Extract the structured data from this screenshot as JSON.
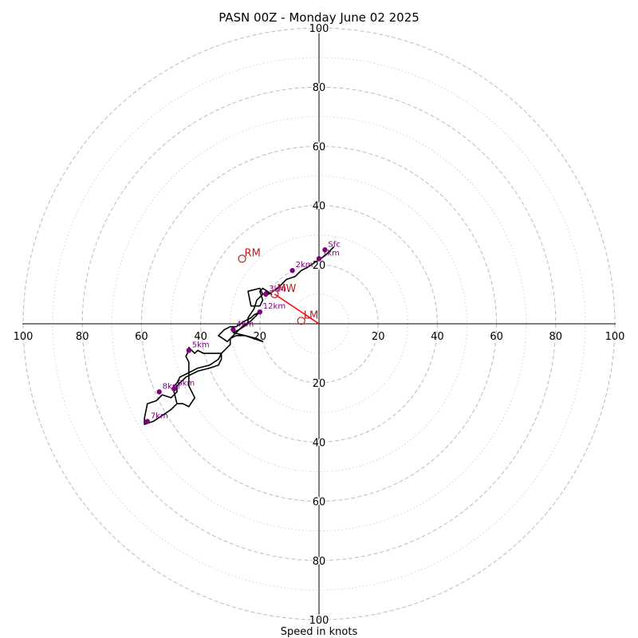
{
  "chart_data": {
    "type": "hodograph",
    "title": "PASN 00Z - Monday June 02 2025",
    "xlabel": "Speed in knots",
    "range": [
      -100,
      100
    ],
    "rings_major": [
      20,
      40,
      60,
      80,
      100
    ],
    "rings_minor": [
      10,
      30,
      50,
      70,
      90
    ],
    "axis_ticks": {
      "right": [
        "20",
        "40",
        "60",
        "80",
        "100"
      ],
      "left": [
        "20",
        "40",
        "60",
        "80",
        "100"
      ],
      "up": [
        "20",
        "40",
        "60",
        "80",
        "100"
      ],
      "down": [
        "20",
        "40",
        "60",
        "80",
        "100"
      ]
    },
    "hodograph_trace": [
      [
        5,
        26
      ],
      [
        2,
        23
      ],
      [
        -4,
        19
      ],
      [
        -6,
        18
      ],
      [
        -8,
        16
      ],
      [
        -11,
        15
      ],
      [
        -14,
        12
      ],
      [
        -17,
        10
      ],
      [
        -18,
        11
      ],
      [
        -16,
        10
      ],
      [
        -19,
        12
      ],
      [
        -20,
        11
      ],
      [
        -19,
        8
      ],
      [
        -20,
        6
      ],
      [
        -23,
        6
      ],
      [
        -24,
        11
      ],
      [
        -20,
        12
      ],
      [
        -19,
        10
      ],
      [
        -21,
        8
      ],
      [
        -22,
        5
      ],
      [
        -24,
        2
      ],
      [
        -24,
        0
      ],
      [
        -27,
        -2
      ],
      [
        -29,
        -4
      ],
      [
        -31,
        -6
      ],
      [
        -34,
        -4
      ],
      [
        -32,
        -2
      ],
      [
        -30,
        -1
      ],
      [
        -28,
        -1
      ],
      [
        -25,
        1
      ],
      [
        -23,
        2
      ],
      [
        -22,
        3
      ],
      [
        -20,
        4
      ],
      [
        -23,
        1
      ],
      [
        -26,
        -1
      ],
      [
        -27,
        -2
      ],
      [
        -29,
        -3
      ],
      [
        -25,
        -4
      ],
      [
        -22,
        -5
      ],
      [
        -19,
        -6
      ],
      [
        -21,
        -5
      ],
      [
        -25,
        -4
      ],
      [
        -28,
        -4
      ],
      [
        -30,
        -5
      ],
      [
        -30,
        -6
      ],
      [
        -30,
        -7
      ],
      [
        -31,
        -8
      ],
      [
        -33,
        -10
      ],
      [
        -34,
        -12
      ],
      [
        -37,
        -14
      ],
      [
        -41,
        -15
      ],
      [
        -43,
        -16
      ],
      [
        -45,
        -17
      ],
      [
        -47,
        -18
      ],
      [
        -48,
        -20
      ],
      [
        -49,
        -21
      ],
      [
        -49,
        -23
      ],
      [
        -48,
        -27
      ],
      [
        -46,
        -27
      ],
      [
        -44,
        -28
      ],
      [
        -42,
        -25
      ],
      [
        -44,
        -21
      ],
      [
        -44,
        -17
      ],
      [
        -44,
        -13
      ],
      [
        -45,
        -11
      ],
      [
        -44,
        -9
      ],
      [
        -44,
        -8
      ],
      [
        -42,
        -10
      ],
      [
        -41,
        -9
      ],
      [
        -39,
        -10
      ],
      [
        -37,
        -10
      ],
      [
        -33,
        -10
      ],
      [
        -33,
        -12
      ],
      [
        -34,
        -14
      ],
      [
        -37,
        -15
      ],
      [
        -41,
        -16
      ],
      [
        -45,
        -18
      ],
      [
        -48,
        -21
      ],
      [
        -48,
        -23
      ],
      [
        -50,
        -25
      ],
      [
        -53,
        -24
      ],
      [
        -55,
        -26
      ],
      [
        -58,
        -27
      ],
      [
        -59,
        -32
      ],
      [
        -59,
        -34
      ],
      [
        -56,
        -33
      ],
      [
        -53,
        -31
      ],
      [
        -50,
        -29
      ],
      [
        -48,
        -27
      ]
    ],
    "height_markers": [
      {
        "label": "Sfc",
        "u": 2,
        "v": 25
      },
      {
        "label": "1km",
        "u": 0,
        "v": 22
      },
      {
        "label": "2km",
        "u": -9,
        "v": 18
      },
      {
        "label": "3km",
        "u": -18,
        "v": 10
      },
      {
        "label": "4km",
        "u": -29,
        "v": -2
      },
      {
        "label": "5km",
        "u": -44,
        "v": -9
      },
      {
        "label": "6km",
        "u": -49,
        "v": -22
      },
      {
        "label": "7km",
        "u": -58,
        "v": -33
      },
      {
        "label": "8km",
        "u": -54,
        "v": -23
      },
      {
        "label": "12km",
        "u": -20,
        "v": 4
      }
    ],
    "storm_motion": {
      "RM": {
        "label": "RM",
        "u": -26,
        "v": 22
      },
      "LM": {
        "label": "LM",
        "u": -6,
        "v": 1
      },
      "MW": {
        "label": "MW",
        "u": -15,
        "v": 10
      }
    },
    "colors": {
      "trace": "#000000",
      "markers": "#800080",
      "storm_motion": "#b22222",
      "shear_vector": "#ff0000",
      "grid": "#bbbbbb"
    }
  }
}
